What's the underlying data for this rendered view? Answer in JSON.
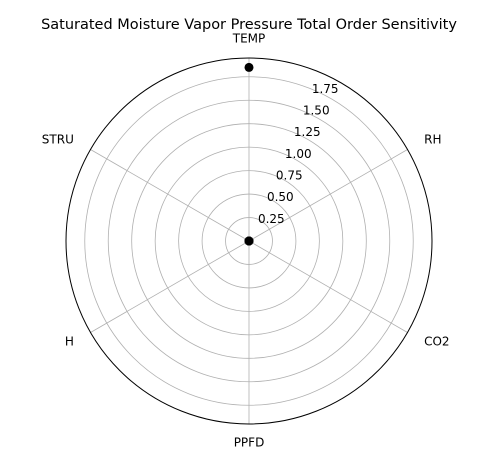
{
  "chart_data": {
    "type": "radar",
    "title": "Saturated Moisture Vapor Pressure Total Order Sensitivity",
    "categories": [
      "TEMP",
      "RH",
      "CO2",
      "PPFD",
      "H",
      "STRU"
    ],
    "values": [
      1.85,
      0.0,
      0.0,
      0.0,
      0.0,
      0.0
    ],
    "rmax": 1.95,
    "r_ticks": [
      0.25,
      0.5,
      0.75,
      1.0,
      1.25,
      1.5,
      1.75
    ],
    "r_tick_labels": [
      "0.25",
      "0.50",
      "0.75",
      "1.00",
      "1.25",
      "1.50",
      "1.75"
    ],
    "grid": true,
    "colors": {
      "marker": "#000000",
      "grid": "#b0b0b0",
      "frame": "#000000"
    }
  }
}
